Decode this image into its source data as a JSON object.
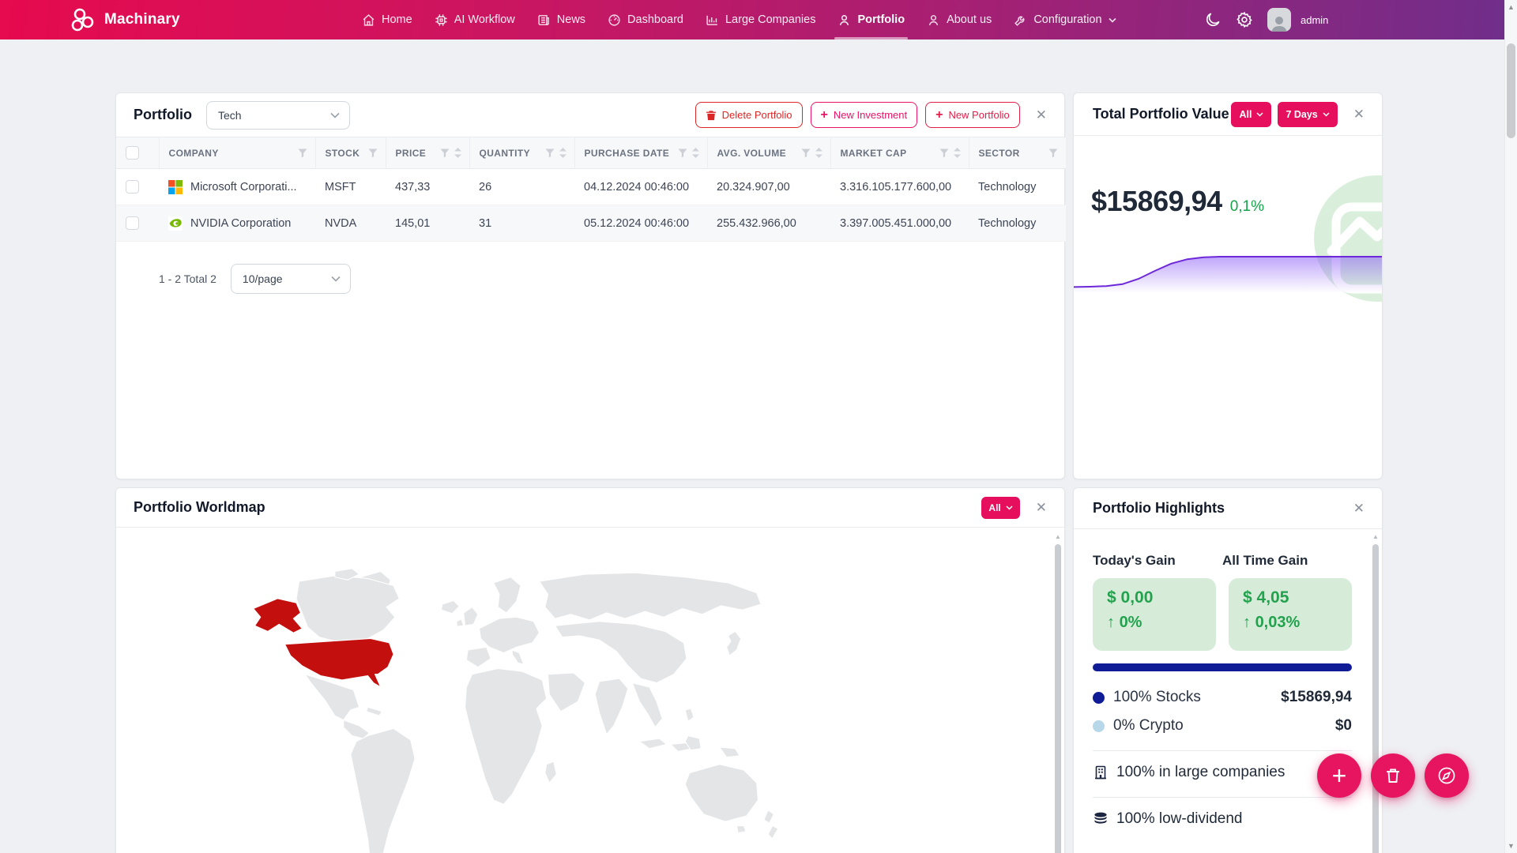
{
  "colors": {
    "accent_pink": "#e50f5e",
    "navbar_gradient": [
      "#e60a4e",
      "#6f2e8b"
    ],
    "delete_red": "#dc2626",
    "new_investment_pink": "#ec1166",
    "new_portfolio_red": "#e11d48",
    "ticker_red": "#e11748",
    "gain_green_text": "#23a24e",
    "gain_green_bg": "#d6ecd9",
    "change_green": "#16a34a",
    "stocks_navy": "#101c96",
    "crypto_blue": "#b6d8e8",
    "chart_purple": "#6d28d9",
    "map_gray": "#e4e5e6",
    "map_highlight": "#c40f0f"
  },
  "navbar": {
    "brand": "Machinary",
    "items": [
      {
        "label": "Home"
      },
      {
        "label": "AI Workflow"
      },
      {
        "label": "News"
      },
      {
        "label": "Dashboard"
      },
      {
        "label": "Large Companies"
      },
      {
        "label": "Portfolio",
        "active": true
      },
      {
        "label": "About us"
      },
      {
        "label": "Configuration"
      }
    ],
    "user": "admin"
  },
  "portfolio_panel": {
    "title": "Portfolio",
    "portfolio_select": "Tech",
    "actions": {
      "delete": "Delete Portfolio",
      "new_investment": "New Investment",
      "new_portfolio": "New Portfolio"
    },
    "table": {
      "columns": [
        {
          "label": "COMPANY"
        },
        {
          "label": "STOCK"
        },
        {
          "label": "PRICE"
        },
        {
          "label": "QUANTITY"
        },
        {
          "label": "PURCHASE DATE"
        },
        {
          "label": "AVG. VOLUME"
        },
        {
          "label": "MARKET CAP"
        },
        {
          "label": "SECTOR"
        }
      ],
      "rows": [
        {
          "company": "Microsoft Corporati...",
          "stock": "MSFT",
          "price": "437,33",
          "quantity": "26",
          "purchase_date": "04.12.2024 00:46:00",
          "avg_volume": "20.324.907,00",
          "market_cap": "3.316.105.177.600,00",
          "sector": "Technology"
        },
        {
          "company": "NVIDIA Corporation",
          "stock": "NVDA",
          "price": "145,01",
          "quantity": "31",
          "purchase_date": "05.12.2024 00:46:00",
          "avg_volume": "255.432.966,00",
          "market_cap": "3.397.005.451.000,00",
          "sector": "Technology"
        }
      ]
    },
    "pagination": {
      "summary": "1 - 2 Total 2",
      "page_size": "10/page"
    }
  },
  "total_value_panel": {
    "title": "Total Portfolio Value",
    "scope_filter": "All",
    "range_filter": "7 Days",
    "value": "$15869,94",
    "change": "0,1%",
    "chart_data": {
      "type": "area",
      "title": "Total Portfolio Value sparkline",
      "x": "last 7 days (axis unlabeled)",
      "ylabel": "portfolio value (axis unlabeled)",
      "end_value": "15869,94",
      "change_pct": "0,1%",
      "series": [
        {
          "name": "Total Portfolio Value",
          "relative_values": [
            0.04,
            0.05,
            0.07,
            0.13,
            0.3,
            0.55,
            0.78,
            0.92,
            0.98,
            1,
            1,
            1,
            1,
            1,
            1,
            1,
            1,
            1,
            1,
            1
          ]
        }
      ],
      "legend": false,
      "grid": false
    }
  },
  "worldmap_panel": {
    "title": "Portfolio Worldmap",
    "filter": "All",
    "highlighted_countries": [
      "United States of America"
    ],
    "highlight_color": "#c40f0f"
  },
  "highlights_panel": {
    "title": "Portfolio Highlights",
    "gains": [
      {
        "label": "Today's Gain",
        "amount": "$ 0,00",
        "arrow": "↑",
        "percent": "0%"
      },
      {
        "label": "All Time Gain",
        "amount": "$ 4,05",
        "arrow": "↑",
        "percent": "0,03%"
      }
    ],
    "allocation_bar_percent": 100,
    "allocation": [
      {
        "label": "100% Stocks",
        "value": "$15869,94"
      },
      {
        "label": "0% Crypto",
        "value": "$0"
      }
    ],
    "facts": [
      {
        "label": "100% in large companies"
      },
      {
        "label": "100% low-dividend"
      }
    ]
  }
}
